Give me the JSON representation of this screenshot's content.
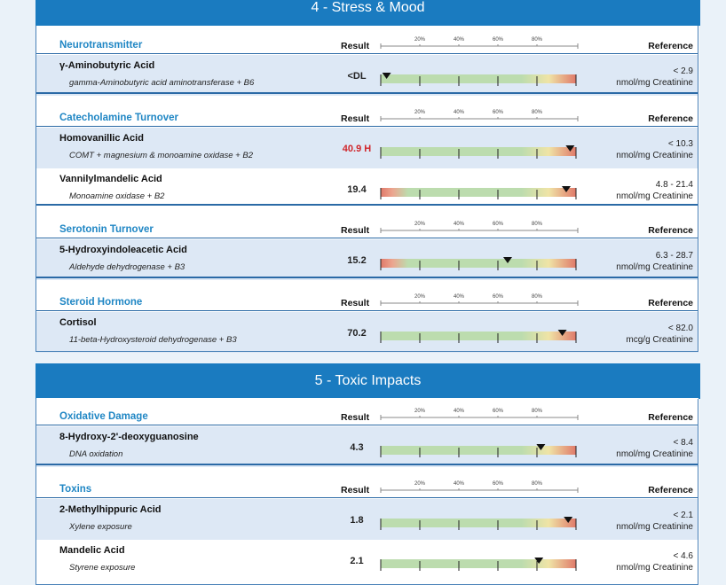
{
  "sections": [
    {
      "title": "4 - Stress & Mood",
      "groups": [
        {
          "category": "Neurotransmitter",
          "result_header": "Result",
          "reference_header": "Reference",
          "scale_ticks": [
            "20%",
            "40%",
            "60%",
            "80%"
          ],
          "rows": [
            {
              "name": "γ-Aminobutyric Acid",
              "cofactors": "gamma-Aminobutyric acid aminotransferase + B6",
              "result": "<DL",
              "flag": "",
              "marker_pct": 3,
              "scale": "upper",
              "range": "< 2.9",
              "unit": "nmol/mg Creatinine"
            }
          ]
        },
        {
          "category": "Catecholamine Turnover",
          "result_header": "Result",
          "reference_header": "Reference",
          "scale_ticks": [
            "20%",
            "40%",
            "60%",
            "80%"
          ],
          "rows": [
            {
              "name": "Homovanillic Acid",
              "cofactors": "COMT + magnesium & monoamine oxidase + B2",
              "result": "40.9 H",
              "flag": "high",
              "marker_pct": 97,
              "scale": "upper",
              "range": "< 10.3",
              "unit": "nmol/mg Creatinine"
            },
            {
              "name": "Vannilylmandelic Acid",
              "cofactors": "Monoamine oxidase + B2",
              "result": "19.4",
              "flag": "",
              "marker_pct": 95,
              "scale": "both",
              "range": "4.8 - 21.4",
              "unit": "nmol/mg Creatinine"
            }
          ]
        },
        {
          "category": "Serotonin Turnover",
          "result_header": "Result",
          "reference_header": "Reference",
          "scale_ticks": [
            "20%",
            "40%",
            "60%",
            "80%"
          ],
          "rows": [
            {
              "name": "5-Hydroxyindoleacetic Acid",
              "cofactors": "Aldehyde dehydrogenase + B3",
              "result": "15.2",
              "flag": "",
              "marker_pct": 65,
              "scale": "both",
              "range": "6.3 - 28.7",
              "unit": "nmol/mg Creatinine"
            }
          ]
        },
        {
          "category": "Steroid Hormone",
          "result_header": "Result",
          "reference_header": "Reference",
          "scale_ticks": [
            "20%",
            "40%",
            "60%",
            "80%"
          ],
          "rows": [
            {
              "name": "Cortisol",
              "cofactors": "11-beta-Hydroxysteroid dehydrogenase + B3",
              "result": "70.2",
              "flag": "",
              "marker_pct": 93,
              "scale": "upper",
              "range": "< 82.0",
              "unit": "mcg/g Creatinine"
            }
          ]
        }
      ]
    },
    {
      "title": "5 - Toxic Impacts",
      "groups": [
        {
          "category": "Oxidative Damage",
          "result_header": "Result",
          "reference_header": "Reference",
          "scale_ticks": [
            "20%",
            "40%",
            "60%",
            "80%"
          ],
          "rows": [
            {
              "name": "8-Hydroxy-2'-deoxyguanosine",
              "cofactors": "DNA oxidation",
              "result": "4.3",
              "flag": "",
              "marker_pct": 82,
              "scale": "upper",
              "range": "< 8.4",
              "unit": "nmol/mg Creatinine"
            }
          ]
        },
        {
          "category": "Toxins",
          "result_header": "Result",
          "reference_header": "Reference",
          "scale_ticks": [
            "20%",
            "40%",
            "60%",
            "80%"
          ],
          "rows": [
            {
              "name": "2-Methylhippuric Acid",
              "cofactors": "Xylene exposure",
              "result": "1.8",
              "flag": "",
              "marker_pct": 96,
              "scale": "upper",
              "range": "< 2.1",
              "unit": "nmol/mg Creatinine"
            },
            {
              "name": "Mandelic Acid",
              "cofactors": "Styrene exposure",
              "result": "2.1",
              "flag": "",
              "marker_pct": 81,
              "scale": "upper",
              "range": "< 4.6",
              "unit": "nmol/mg Creatinine"
            }
          ]
        }
      ]
    }
  ],
  "colors": {
    "banner": "#1a7bc0",
    "category_text": "#1f86c4",
    "high_flag": "#d0262b",
    "bar_green": "#bcdcae",
    "bar_yellow": "#efe4a6",
    "bar_red": "#e07a6a"
  }
}
